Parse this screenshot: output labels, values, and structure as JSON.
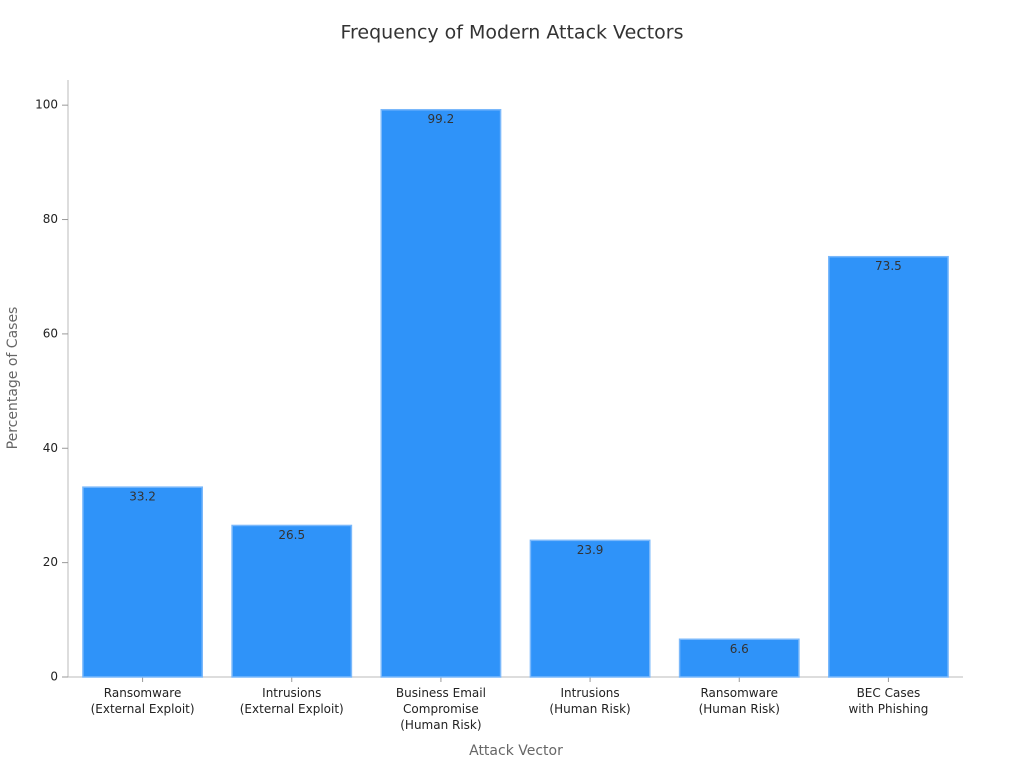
{
  "chart_data": {
    "type": "bar",
    "title": "Frequency of Modern Attack Vectors",
    "x_label": "Attack Vector",
    "y_label": "Percentage of Cases",
    "categories": [
      "Ransomware\n(External Exploit)",
      "Intrusions\n(External Exploit)",
      "Business Email\nCompromise\n(Human Risk)",
      "Intrusions\n(Human Risk)",
      "Ransomware\n(Human Risk)",
      "BEC Cases\nwith Phishing"
    ],
    "values": [
      33.2,
      26.5,
      99.2,
      23.9,
      6.6,
      73.5
    ],
    "color": "#2f93f9",
    "ylim": [
      0,
      104.4
    ],
    "yticks": [
      0,
      20,
      40,
      60,
      80,
      100
    ],
    "grid": false
  }
}
